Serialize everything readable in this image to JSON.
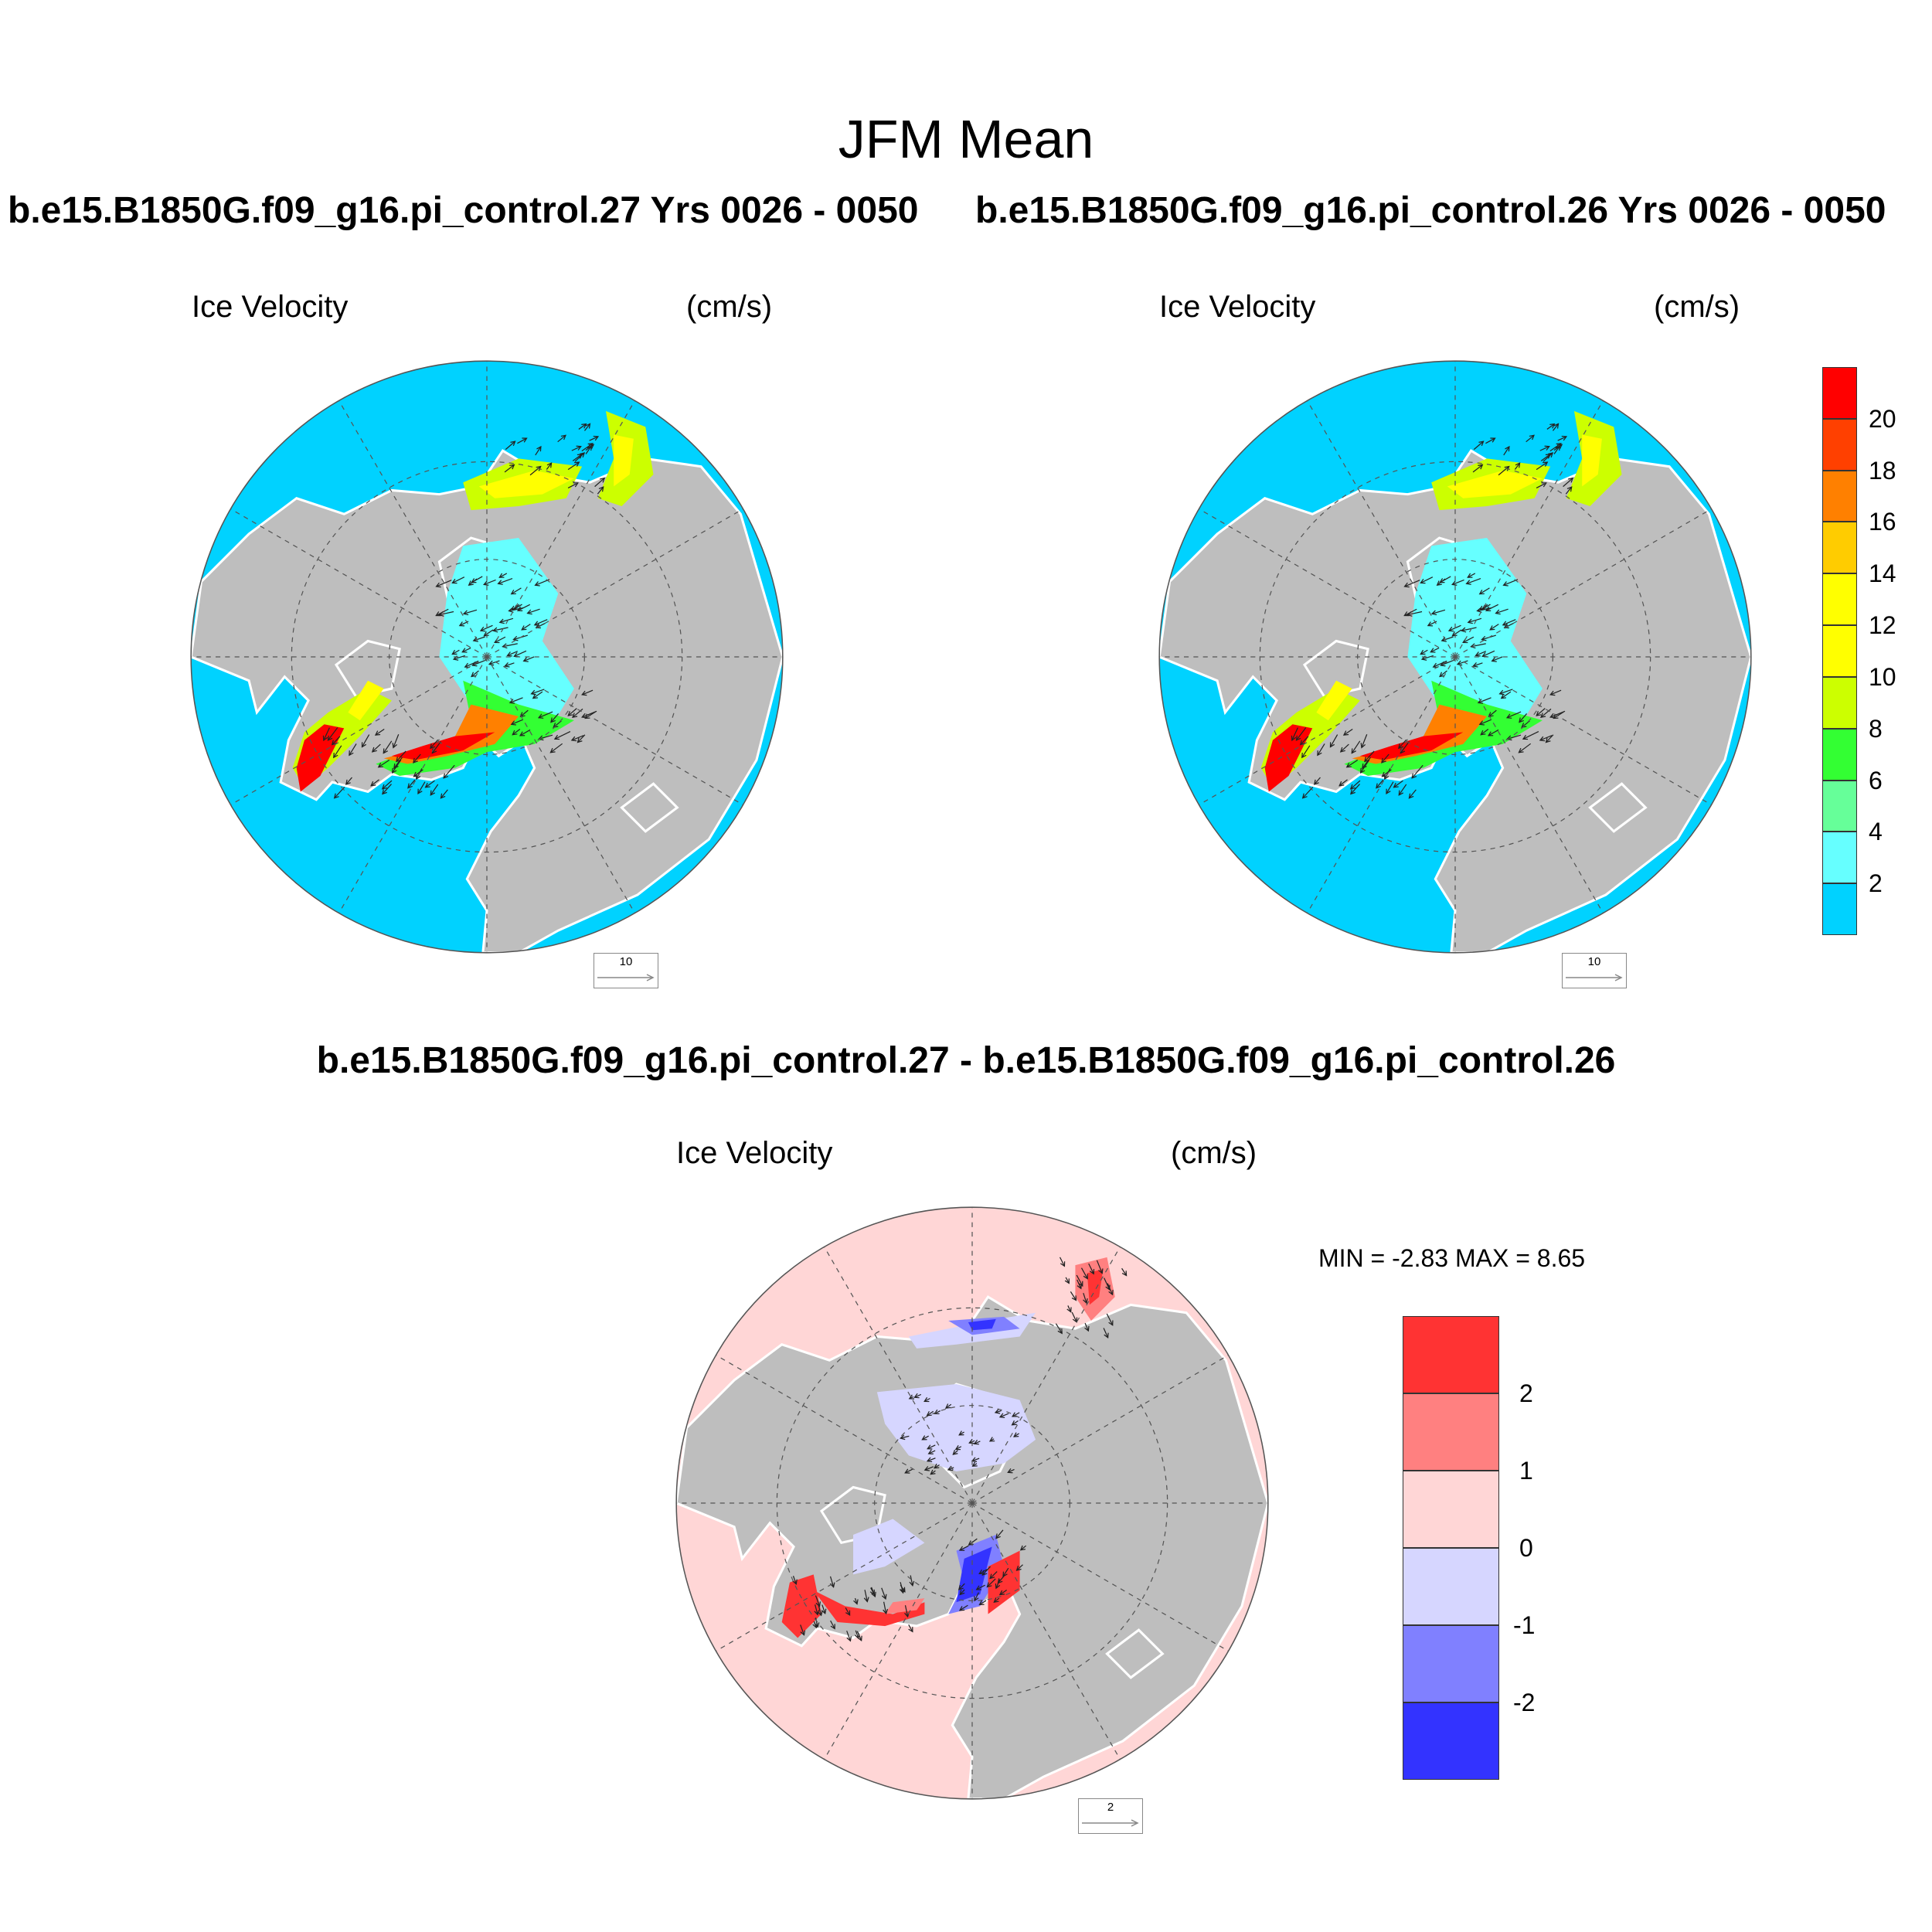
{
  "title": "JFM Mean",
  "panels": [
    {
      "case_title": "b.e15.B1850G.f09_g16.pi_control.27  Yrs 0026 - 0050",
      "variable_label": "Ice Velocity",
      "units_label": "(cm/s)",
      "reference_vector": "10"
    },
    {
      "case_title": "b.e15.B1850G.f09_g16.pi_control.26  Yrs 0026 - 0050",
      "variable_label": "Ice Velocity",
      "units_label": "(cm/s)",
      "reference_vector": "10"
    }
  ],
  "difference_panel": {
    "title": "b.e15.B1850G.f09_g16.pi_control.27 - b.e15.B1850G.f09_g16.pi_control.26",
    "variable_label": "Ice Velocity",
    "units_label": "(cm/s)",
    "minmax_text": "MIN =  -2.83 MAX =   8.65",
    "reference_vector": "2"
  },
  "colorbar_mean": {
    "tick_labels": [
      "20",
      "18",
      "16",
      "14",
      "12",
      "10",
      "8",
      "6",
      "4",
      "2"
    ],
    "colors_bottom_to_top": [
      "#00d2ff",
      "#66ffff",
      "#66ff99",
      "#33ff33",
      "#ccff00",
      "#ffff00",
      "#ffff00",
      "#ffcc00",
      "#ff8000",
      "#ff4000",
      "#ff0000"
    ]
  },
  "colorbar_diff": {
    "tick_labels": [
      "2",
      "1",
      "0",
      "-1",
      "-2"
    ],
    "colors_top_to_bottom": [
      "#ff3333",
      "#ff8080",
      "#ffd6d6",
      "#d6d6ff",
      "#8080ff",
      "#3333ff"
    ]
  },
  "map_colors": {
    "land": "#bebebe",
    "ocean_mean": "#00d2ff",
    "ocean_diff": "#ffd6d6",
    "coast": "#ffffff"
  }
}
